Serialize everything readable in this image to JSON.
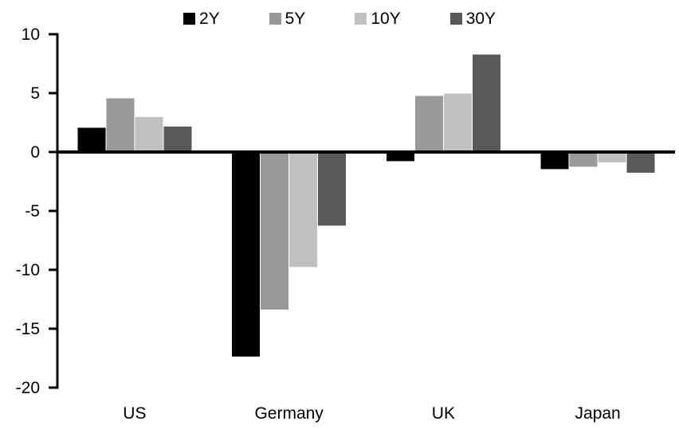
{
  "chart_data": {
    "type": "bar",
    "title": "",
    "categories": [
      "US",
      "Germany",
      "UK",
      "Japan"
    ],
    "series": [
      {
        "name": "2Y",
        "color": "#000000",
        "values": [
          2.1,
          -17.4,
          -0.8,
          -1.5
        ]
      },
      {
        "name": "5Y",
        "color": "#999999",
        "values": [
          4.6,
          -13.4,
          4.8,
          -1.3
        ]
      },
      {
        "name": "10Y",
        "color": "#c0c0c0",
        "values": [
          3.0,
          -9.8,
          5.0,
          -0.9
        ]
      },
      {
        "name": "30Y",
        "color": "#595959",
        "values": [
          2.2,
          -6.3,
          8.3,
          -1.8
        ]
      }
    ],
    "ylim": [
      -20,
      10
    ],
    "yticks": [
      10,
      5,
      0,
      -5,
      -10,
      -15,
      -20
    ],
    "grid": false,
    "legend_position": "top-center",
    "legend_labels": [
      "2Y",
      "5Y",
      "10Y",
      "30Y"
    ],
    "axis_color": "#000000",
    "background_color": "#ffffff"
  }
}
